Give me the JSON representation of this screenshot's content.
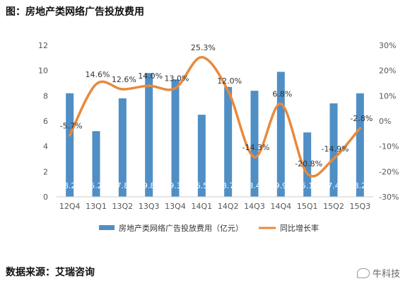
{
  "page_title": "图：房地产类网络广告投放费用",
  "source": "数据来源：艾瑞咨询",
  "watermark": "牛科技",
  "colors": {
    "bar": "#4f8fc5",
    "line": "#e9893b"
  },
  "chart_data": {
    "type": "bar",
    "categories": [
      "12Q4",
      "13Q1",
      "13Q2",
      "13Q3",
      "13Q4",
      "14Q1",
      "14Q2",
      "14Q3",
      "14Q4",
      "15Q1",
      "15Q2",
      "15Q3"
    ],
    "series": [
      {
        "name": "房地产类网络广告投放费用（亿元）",
        "type": "bar",
        "axis": "left",
        "values": [
          8.2,
          5.2,
          7.8,
          9.8,
          9.3,
          6.5,
          8.7,
          8.4,
          9.9,
          5.1,
          7.4,
          8.2
        ],
        "labels": [
          "8.2",
          "5.2",
          "7.8",
          "9.8",
          "9.3",
          "6.5",
          "8.7",
          "8.4",
          "9.9",
          "5.1",
          "7.4",
          "8.2"
        ]
      },
      {
        "name": "同比增长率",
        "type": "line",
        "axis": "right",
        "values": [
          -5.7,
          14.6,
          12.6,
          14.0,
          13.0,
          25.3,
          12.0,
          -14.3,
          6.8,
          -20.8,
          -14.9,
          -2.8
        ],
        "labels": [
          "-5.7%",
          "14.6%",
          "12.6%",
          "14.0%",
          "13.0%",
          "25.3%",
          "12.0%",
          "-14.3%",
          "6.8%",
          "-20.8%",
          "-14.9%",
          "-2.8%"
        ]
      }
    ],
    "y_left": {
      "ylim": [
        0,
        12
      ],
      "ticks": [
        "0",
        "2",
        "4",
        "6",
        "8",
        "10",
        "12"
      ]
    },
    "y_right": {
      "ylim": [
        -30,
        30
      ],
      "ticks": [
        "-30%",
        "-20%",
        "-10%",
        "0%",
        "10%",
        "20%",
        "30%"
      ]
    },
    "grid": false,
    "legend_position": "bottom"
  }
}
